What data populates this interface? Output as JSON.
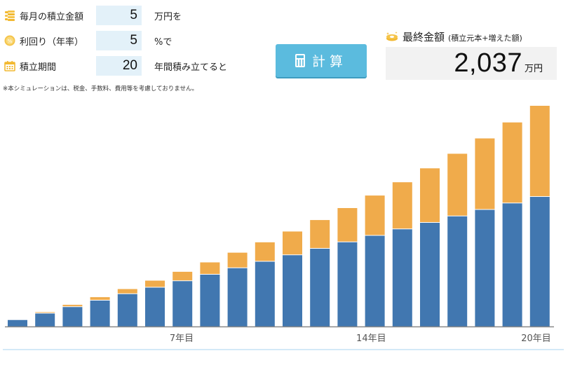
{
  "inputs": [
    {
      "label": "毎月の積立金額",
      "value": "5",
      "unit": "万円を",
      "icon": "coin-stack-icon"
    },
    {
      "label": "利回り（年率）",
      "value": "5",
      "unit": "%で",
      "icon": "percent-coin-icon"
    },
    {
      "label": "積立期間",
      "value": "20",
      "unit": "年間積み立てると",
      "icon": "calendar-icon"
    }
  ],
  "note": "※本シミュレーションは、税金、手数料、費用等を考慮しておりません。",
  "calc_button": {
    "label": "計算",
    "icon": "calculator-icon"
  },
  "result": {
    "title": "最終金額",
    "subtitle": "(積立元本+増えた額)",
    "value": "2,037",
    "unit": "万円",
    "icon": "coin-sparkle-icon"
  },
  "colors": {
    "principal": "#4177b0",
    "gain": "#f0ab4b",
    "input_bg": "#e3f1f9",
    "button": "#5bbbde",
    "result_bg": "#f2f2f2"
  },
  "chart_data": {
    "type": "bar",
    "stacked": true,
    "title": "",
    "xlabel": "",
    "ylabel": "万円",
    "categories": [
      "1年目",
      "2年目",
      "3年目",
      "4年目",
      "5年目",
      "6年目",
      "7年目",
      "8年目",
      "9年目",
      "10年目",
      "11年目",
      "12年目",
      "13年目",
      "14年目",
      "15年目",
      "16年目",
      "17年目",
      "18年目",
      "19年目",
      "20年目"
    ],
    "tick_labels": [
      {
        "index": 6,
        "label": "7年目"
      },
      {
        "index": 13,
        "label": "14年目"
      },
      {
        "index": 19,
        "label": "20年目"
      }
    ],
    "series": [
      {
        "name": "積立元本",
        "color": "#4177b0",
        "values": [
          60,
          120,
          180,
          240,
          300,
          360,
          420,
          480,
          540,
          600,
          660,
          720,
          780,
          840,
          900,
          960,
          1020,
          1080,
          1140,
          1200
        ]
      },
      {
        "name": "増えた額",
        "color": "#f0ab4b",
        "values": [
          1,
          6,
          14,
          25,
          40,
          58,
          80,
          107,
          137,
          173,
          213,
          259,
          310,
          366,
          429,
          498,
          573,
          655,
          743,
          837
        ]
      }
    ],
    "ylim": [
      0,
      2037
    ],
    "grid": false,
    "legend": "none"
  }
}
